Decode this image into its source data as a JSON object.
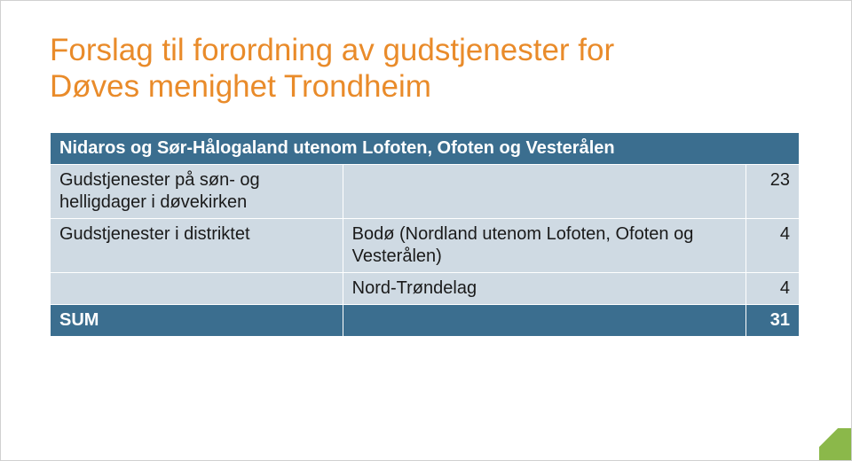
{
  "title_line1": "Forslag til forordning av gudstjenester for",
  "title_line2": "Døves menighet Trondheim",
  "title_color": "#e98b2a",
  "accent_color": "#8bb84a",
  "table": {
    "header_bg": "#3b6e8f",
    "header_fg": "#ffffff",
    "row_bg": "#cfdae3",
    "row_fg": "#1a1a1a",
    "columns": [
      "label",
      "detail",
      "value"
    ],
    "rows": [
      {
        "type": "header",
        "cells": [
          "Nidaros og Sør-Hålogaland utenom Lofoten, Ofoten og Vesterålen",
          "",
          ""
        ]
      },
      {
        "type": "body",
        "cells": [
          "Gudstjenester på søn- og helligdager i døvekirken",
          "",
          "23"
        ]
      },
      {
        "type": "body",
        "cells": [
          "Gudstjenester i distriktet",
          "Bodø (Nordland utenom Lofoten, Ofoten  og Vesterålen)",
          "4"
        ]
      },
      {
        "type": "body",
        "cells": [
          "",
          "Nord-Trøndelag",
          "4"
        ]
      },
      {
        "type": "sum",
        "cells": [
          "SUM",
          "",
          "31"
        ]
      }
    ]
  }
}
